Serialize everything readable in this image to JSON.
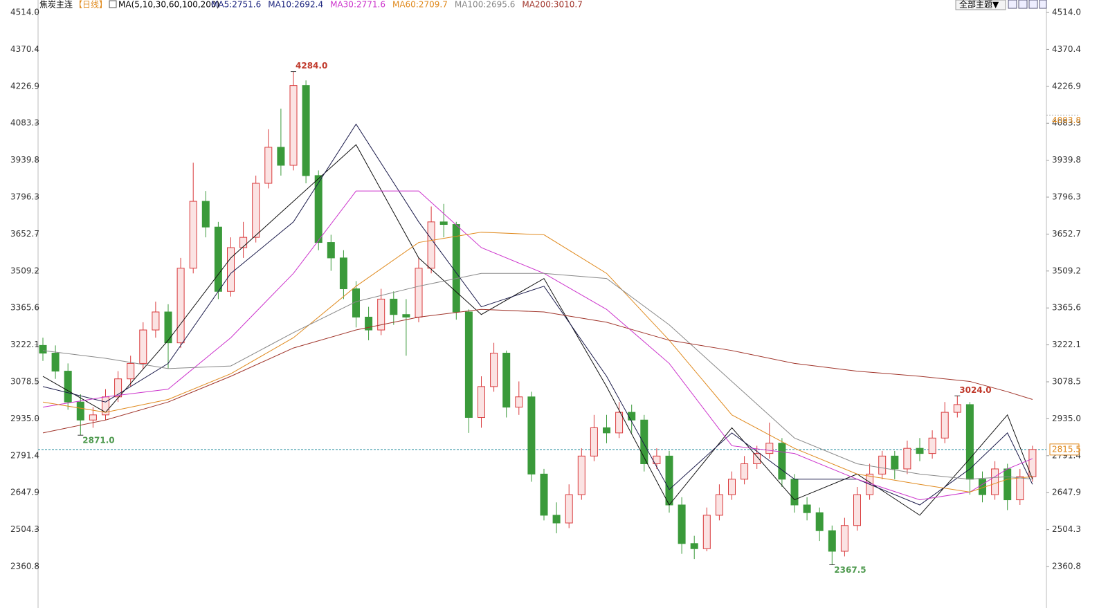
{
  "chart_data": {
    "type": "candlestick",
    "header": {
      "symbol": "焦炭主连",
      "period": "【日线】",
      "ma_title": "MA(5,10,30,60,100,200)",
      "theme_button": "全部主题▼"
    },
    "ylim": [
      2264,
      4514
    ],
    "yticks": [
      {
        "value": 2360.8,
        "label": "2360.8"
      },
      2504.3,
      2647.9,
      2791.4,
      {
        "value": 2935,
        "label": "2935.0"
      },
      3078.5,
      3222.1,
      3365.6,
      3509.2,
      3652.7,
      3796.3,
      3939.8,
      4083.3,
      4226.9,
      4370.4,
      {
        "value": 4514,
        "label": "4514.0"
      }
    ],
    "open": [
      3220,
      3190,
      3120,
      3000,
      2930,
      2950,
      3020,
      3090,
      3150,
      3280,
      3350,
      3230,
      3520,
      3780,
      3680,
      3430,
      3600,
      3640,
      3850,
      3990,
      3920,
      4230,
      3880,
      3620,
      3560,
      3440,
      3330,
      3280,
      3400,
      3340,
      3330,
      3520,
      3700,
      3690,
      3350,
      2940,
      3060,
      3190,
      2980,
      3020,
      2720,
      2560,
      2530,
      2640,
      2790,
      2900,
      2880,
      2960,
      2930,
      2760,
      2790,
      2600,
      2450,
      2430,
      2560,
      2640,
      2700,
      2760,
      2800,
      2840,
      2700,
      2600,
      2570,
      2500,
      2420,
      2520,
      2640,
      2720,
      2790,
      2740,
      2820,
      2800,
      2860,
      2960,
      2990,
      2700,
      2640,
      2740,
      2620,
      2710
    ],
    "high": [
      3250,
      3220,
      3150,
      3030,
      2980,
      3050,
      3120,
      3180,
      3310,
      3390,
      3380,
      3560,
      3930,
      3820,
      3700,
      3640,
      3700,
      3880,
      4060,
      4140,
      4284,
      4250,
      3900,
      3650,
      3590,
      3470,
      3370,
      3440,
      3430,
      3400,
      3560,
      3760,
      3770,
      3700,
      3360,
      3100,
      3230,
      3200,
      3080,
      3040,
      2740,
      2610,
      2680,
      2820,
      2950,
      2950,
      3000,
      2990,
      2950,
      2820,
      2810,
      2630,
      2480,
      2590,
      2680,
      2730,
      2790,
      2830,
      2920,
      2860,
      2720,
      2630,
      2590,
      2520,
      2550,
      2670,
      2760,
      2810,
      2810,
      2850,
      2860,
      2890,
      3000,
      3024,
      3000,
      2730,
      2770,
      2760,
      2740,
      2830
    ],
    "low": [
      3160,
      3090,
      2970,
      2871,
      2900,
      2930,
      3000,
      3060,
      3130,
      3250,
      3130,
      3210,
      3500,
      3640,
      3400,
      3410,
      3560,
      3620,
      3830,
      3880,
      3900,
      3850,
      3590,
      3510,
      3400,
      3290,
      3240,
      3260,
      3300,
      3180,
      3310,
      3500,
      3640,
      3320,
      2880,
      2900,
      3040,
      2940,
      2950,
      2690,
      2540,
      2490,
      2510,
      2620,
      2770,
      2840,
      2860,
      2880,
      2730,
      2740,
      2570,
      2410,
      2390,
      2420,
      2540,
      2620,
      2680,
      2740,
      2780,
      2670,
      2570,
      2540,
      2460,
      2367.5,
      2400,
      2500,
      2620,
      2700,
      2700,
      2720,
      2770,
      2780,
      2840,
      2940,
      2640,
      2610,
      2620,
      2580,
      2600,
      2690
    ],
    "close": [
      3190,
      3120,
      3000,
      2930,
      2950,
      3020,
      3090,
      3150,
      3280,
      3350,
      3230,
      3520,
      3780,
      3680,
      3430,
      3600,
      3640,
      3850,
      3990,
      3920,
      4230,
      3880,
      3620,
      3560,
      3440,
      3330,
      3280,
      3400,
      3340,
      3330,
      3520,
      3700,
      3690,
      3350,
      2940,
      3060,
      3190,
      2980,
      3020,
      2720,
      2560,
      2530,
      2640,
      2790,
      2900,
      2880,
      2960,
      2930,
      2760,
      2790,
      2600,
      2450,
      2430,
      2560,
      2640,
      2700,
      2760,
      2800,
      2840,
      2700,
      2600,
      2570,
      2500,
      2420,
      2520,
      2640,
      2720,
      2790,
      2740,
      2820,
      2800,
      2860,
      2960,
      2990,
      2700,
      2640,
      2740,
      2620,
      2710,
      2815.5
    ],
    "up_color": "#d9393b",
    "down_color": "#3a9a3a",
    "ma_x": [
      0,
      5,
      10,
      15,
      20,
      25,
      30,
      35,
      40,
      45,
      50,
      55,
      60,
      65,
      70,
      74,
      77,
      79
    ],
    "series": [
      {
        "name": "MA5:2751.6",
        "color": "#111111",
        "label_color": "#1a237e",
        "values": [
          3100,
          2960,
          3240,
          3560,
          3780,
          4000,
          3560,
          3340,
          3480,
          3060,
          2600,
          2900,
          2620,
          2720,
          2560,
          2780,
          2950,
          2700
        ]
      },
      {
        "name": "MA10:2692.4",
        "color": "#1a1a4a",
        "label_color": "#1a237e",
        "values": [
          3060,
          3000,
          3150,
          3500,
          3700,
          4080,
          3700,
          3370,
          3450,
          3100,
          2660,
          2880,
          2700,
          2700,
          2600,
          2740,
          2880,
          2680
        ]
      },
      {
        "name": "MA30:2771.6",
        "color": "#cc33cc",
        "values": [
          2980,
          3020,
          3050,
          3250,
          3500,
          3820,
          3820,
          3600,
          3500,
          3360,
          3150,
          2830,
          2800,
          2700,
          2620,
          2650,
          2740,
          2780
        ]
      },
      {
        "name": "MA60:2709.7",
        "color": "#e08a1e",
        "values": [
          3000,
          2960,
          3010,
          3110,
          3250,
          3450,
          3620,
          3660,
          3650,
          3500,
          3240,
          2950,
          2820,
          2720,
          2680,
          2650,
          2700,
          2710
        ]
      },
      {
        "name": "MA100:2695.6",
        "color": "#888888",
        "values": [
          3200,
          3170,
          3130,
          3140,
          3270,
          3390,
          3450,
          3500,
          3500,
          3480,
          3300,
          3080,
          2860,
          2760,
          2720,
          2700,
          2710,
          2700
        ]
      },
      {
        "name": "MA200:3010.7",
        "color": "#a0342a",
        "values": [
          2880,
          2930,
          3000,
          3100,
          3210,
          3280,
          3330,
          3360,
          3350,
          3310,
          3240,
          3200,
          3150,
          3120,
          3100,
          3080,
          3040,
          3010
        ]
      }
    ],
    "annotations": [
      {
        "value": 4284,
        "label": "4284.0",
        "kind": "high"
      },
      {
        "value": 2871,
        "label": "2871.0",
        "kind": "low"
      },
      {
        "value": 2367.5,
        "label": "2367.5",
        "kind": "low"
      },
      {
        "value": 3024,
        "label": "3024.0",
        "kind": "high"
      }
    ],
    "side_marker": 4093.8,
    "price_line": 2815.5
  }
}
